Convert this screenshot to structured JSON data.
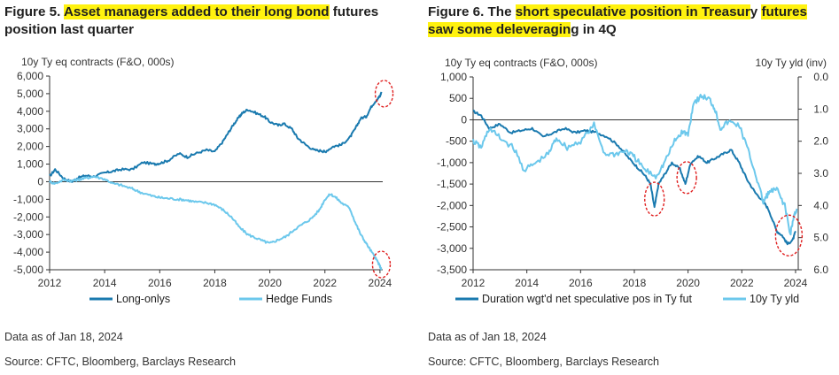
{
  "figure5": {
    "title_prefix": "Figure 5. ",
    "title_highlight": "Asset managers added to their long bond",
    "title_suffix": " futures position last quarter",
    "source_date": "Data as of Jan 18, 2024",
    "source": "Source: CFTC, Bloomberg, Barclays Research"
  },
  "figure6": {
    "title_prefix": "Figure 6. The ",
    "title_highlight_1": "short speculative position in Treasur",
    "title_plain": "y",
    "title_highlight_2": "futures saw some deleveragin",
    "title_suffix": "g in 4Q",
    "source_date": "Data as of Jan 18, 2024",
    "source": "Source: CFTC, Bloomberg, Barclays Research"
  },
  "chart_data": [
    {
      "type": "line",
      "ylabel": "10y Ty eq contracts (F&O, 000s)",
      "ylim": [
        -5000,
        6000
      ],
      "yticks": [
        "6,000",
        "5,000",
        "4,000",
        "3,000",
        "2,000",
        "1,000",
        "0",
        "-1,000",
        "-2,000",
        "-3,000",
        "-4,000",
        "-5,000"
      ],
      "xlim": [
        2012,
        2024.1
      ],
      "xticks": [
        "2012",
        "2014",
        "2016",
        "2018",
        "2020",
        "2022",
        "2024"
      ],
      "legend_position": "bottom",
      "series": [
        {
          "name": "Long-onlys",
          "color": "#1a7aaf",
          "points": [
            [
              2012.0,
              300
            ],
            [
              2012.2,
              700
            ],
            [
              2012.5,
              200
            ],
            [
              2012.8,
              0
            ],
            [
              2013.0,
              200
            ],
            [
              2013.3,
              350
            ],
            [
              2013.6,
              300
            ],
            [
              2014.0,
              500
            ],
            [
              2014.3,
              600
            ],
            [
              2014.6,
              700
            ],
            [
              2015.0,
              700
            ],
            [
              2015.4,
              1100
            ],
            [
              2015.8,
              1000
            ],
            [
              2016.0,
              1050
            ],
            [
              2016.3,
              1200
            ],
            [
              2016.7,
              1600
            ],
            [
              2017.0,
              1400
            ],
            [
              2017.3,
              1600
            ],
            [
              2017.7,
              1800
            ],
            [
              2018.0,
              1700
            ],
            [
              2018.3,
              2300
            ],
            [
              2018.5,
              2800
            ],
            [
              2018.7,
              3300
            ],
            [
              2018.9,
              3700
            ],
            [
              2019.0,
              3900
            ],
            [
              2019.2,
              4100
            ],
            [
              2019.5,
              3900
            ],
            [
              2019.8,
              3700
            ],
            [
              2020.0,
              3400
            ],
            [
              2020.3,
              3200
            ],
            [
              2020.5,
              3300
            ],
            [
              2020.8,
              3000
            ],
            [
              2021.0,
              2500
            ],
            [
              2021.3,
              2100
            ],
            [
              2021.6,
              1800
            ],
            [
              2021.9,
              1750
            ],
            [
              2022.0,
              1700
            ],
            [
              2022.3,
              2000
            ],
            [
              2022.6,
              2100
            ],
            [
              2022.9,
              2500
            ],
            [
              2023.1,
              3000
            ],
            [
              2023.3,
              3600
            ],
            [
              2023.5,
              3700
            ],
            [
              2023.7,
              4300
            ],
            [
              2023.9,
              4700
            ],
            [
              2024.0,
              4850
            ],
            [
              2024.05,
              5100
            ]
          ]
        },
        {
          "name": "Hedge Funds",
          "color": "#6cc8ec",
          "points": [
            [
              2012.0,
              0
            ],
            [
              2012.2,
              -100
            ],
            [
              2012.5,
              100
            ],
            [
              2012.8,
              50
            ],
            [
              2013.0,
              100
            ],
            [
              2013.3,
              200
            ],
            [
              2013.6,
              300
            ],
            [
              2014.0,
              150
            ],
            [
              2014.3,
              -100
            ],
            [
              2014.6,
              -200
            ],
            [
              2015.0,
              -400
            ],
            [
              2015.3,
              -600
            ],
            [
              2015.7,
              -800
            ],
            [
              2016.0,
              -900
            ],
            [
              2016.3,
              -950
            ],
            [
              2016.7,
              -1000
            ],
            [
              2017.0,
              -1050
            ],
            [
              2017.3,
              -1150
            ],
            [
              2017.7,
              -1200
            ],
            [
              2018.0,
              -1300
            ],
            [
              2018.3,
              -1600
            ],
            [
              2018.6,
              -2000
            ],
            [
              2018.9,
              -2600
            ],
            [
              2019.2,
              -3000
            ],
            [
              2019.5,
              -3200
            ],
            [
              2019.8,
              -3400
            ],
            [
              2020.0,
              -3500
            ],
            [
              2020.3,
              -3300
            ],
            [
              2020.6,
              -3100
            ],
            [
              2020.9,
              -2700
            ],
            [
              2021.2,
              -2400
            ],
            [
              2021.5,
              -2100
            ],
            [
              2021.8,
              -1600
            ],
            [
              2022.0,
              -1000
            ],
            [
              2022.2,
              -700
            ],
            [
              2022.4,
              -900
            ],
            [
              2022.6,
              -1200
            ],
            [
              2022.9,
              -1500
            ],
            [
              2023.1,
              -2300
            ],
            [
              2023.3,
              -3000
            ],
            [
              2023.5,
              -3500
            ],
            [
              2023.7,
              -4000
            ],
            [
              2023.9,
              -4500
            ],
            [
              2024.0,
              -4800
            ],
            [
              2024.05,
              -5000
            ]
          ]
        }
      ]
    },
    {
      "type": "line",
      "ylabel": "10y Ty eq contracts (F&O, 000s)",
      "ylabel_right": "10y Ty yld (inv)",
      "ylim": [
        -3500,
        1000
      ],
      "y2lim": [
        6.0,
        0.0
      ],
      "yticks": [
        "1,000",
        "500",
        "0",
        "-500",
        "-1,000",
        "-1,500",
        "-2,000",
        "-2,500",
        "-3,000",
        "-3,500"
      ],
      "y2ticks": [
        "0.0",
        "1.0",
        "2.0",
        "3.0",
        "4.0",
        "5.0",
        "6.0"
      ],
      "xlim": [
        2012,
        2024.1
      ],
      "xticks": [
        "2012",
        "2014",
        "2016",
        "2018",
        "2020",
        "2022",
        "2024"
      ],
      "legend_position": "bottom",
      "series": [
        {
          "name": "Duration wgt'd net speculative pos in Ty fut",
          "color": "#1a7aaf",
          "axis": "left",
          "points": [
            [
              2012.0,
              200
            ],
            [
              2012.3,
              100
            ],
            [
              2012.6,
              -200
            ],
            [
              2013.0,
              -100
            ],
            [
              2013.4,
              -300
            ],
            [
              2013.8,
              -250
            ],
            [
              2014.2,
              -200
            ],
            [
              2014.6,
              -400
            ],
            [
              2015.0,
              -300
            ],
            [
              2015.4,
              -200
            ],
            [
              2015.8,
              -300
            ],
            [
              2016.2,
              -250
            ],
            [
              2016.6,
              -300
            ],
            [
              2017.0,
              -400
            ],
            [
              2017.4,
              -600
            ],
            [
              2017.8,
              -900
            ],
            [
              2018.1,
              -1100
            ],
            [
              2018.4,
              -1300
            ],
            [
              2018.6,
              -1500
            ],
            [
              2018.75,
              -2050
            ],
            [
              2018.9,
              -1500
            ],
            [
              2019.1,
              -1300
            ],
            [
              2019.4,
              -1000
            ],
            [
              2019.7,
              -1150
            ],
            [
              2019.9,
              -1500
            ],
            [
              2020.1,
              -1000
            ],
            [
              2020.4,
              -850
            ],
            [
              2020.7,
              -1000
            ],
            [
              2021.0,
              -900
            ],
            [
              2021.3,
              -800
            ],
            [
              2021.6,
              -700
            ],
            [
              2021.9,
              -1000
            ],
            [
              2022.2,
              -1400
            ],
            [
              2022.5,
              -1700
            ],
            [
              2022.8,
              -1900
            ],
            [
              2023.0,
              -2100
            ],
            [
              2023.3,
              -2600
            ],
            [
              2023.5,
              -2700
            ],
            [
              2023.7,
              -2900
            ],
            [
              2023.9,
              -2800
            ],
            [
              2024.0,
              -2600
            ]
          ]
        },
        {
          "name": "10y Ty yld",
          "color": "#6cc8ec",
          "axis": "right",
          "points": [
            [
              2012.0,
              2.0
            ],
            [
              2012.3,
              2.2
            ],
            [
              2012.6,
              1.6
            ],
            [
              2013.0,
              1.9
            ],
            [
              2013.5,
              2.2
            ],
            [
              2013.9,
              2.9
            ],
            [
              2014.3,
              2.7
            ],
            [
              2014.8,
              2.4
            ],
            [
              2015.1,
              1.9
            ],
            [
              2015.5,
              2.2
            ],
            [
              2016.0,
              2.0
            ],
            [
              2016.5,
              1.5
            ],
            [
              2016.9,
              2.4
            ],
            [
              2017.3,
              2.4
            ],
            [
              2017.7,
              2.3
            ],
            [
              2018.0,
              2.5
            ],
            [
              2018.4,
              2.9
            ],
            [
              2018.8,
              3.1
            ],
            [
              2019.1,
              2.7
            ],
            [
              2019.5,
              2.0
            ],
            [
              2019.8,
              1.7
            ],
            [
              2020.0,
              1.8
            ],
            [
              2020.2,
              0.8
            ],
            [
              2020.5,
              0.6
            ],
            [
              2020.8,
              0.7
            ],
            [
              2021.0,
              1.0
            ],
            [
              2021.2,
              1.6
            ],
            [
              2021.5,
              1.4
            ],
            [
              2021.9,
              1.5
            ],
            [
              2022.2,
              2.2
            ],
            [
              2022.5,
              3.0
            ],
            [
              2022.8,
              3.9
            ],
            [
              2023.0,
              3.6
            ],
            [
              2023.3,
              3.5
            ],
            [
              2023.6,
              4.0
            ],
            [
              2023.8,
              4.9
            ],
            [
              2023.95,
              4.3
            ],
            [
              2024.05,
              4.1
            ]
          ]
        }
      ]
    }
  ]
}
